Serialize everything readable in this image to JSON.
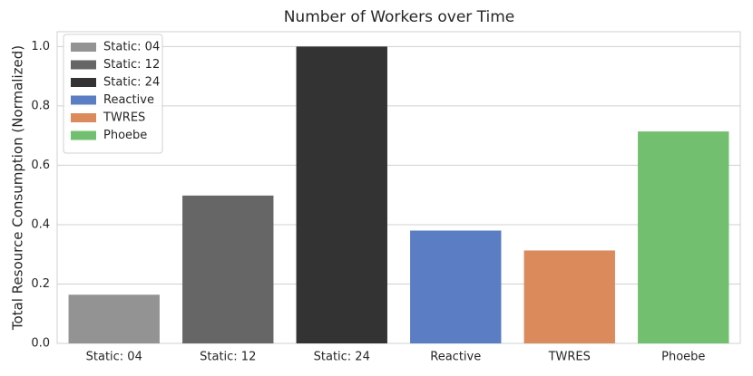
{
  "chart_data": {
    "type": "bar",
    "title": "Number of Workers over Time",
    "y_label": "Total Resource Consumption (Normalized)",
    "categories": [
      "Static: 04",
      "Static: 12",
      "Static: 24",
      "Reactive",
      "TWRES",
      "Phoebe"
    ],
    "values": [
      0.164,
      0.498,
      1.0,
      0.38,
      0.313,
      0.714
    ],
    "colors": [
      "#939393",
      "#666666",
      "#333333",
      "#5a7dc3",
      "#db8a5c",
      "#72c06f"
    ],
    "ylim": [
      0,
      1.05
    ],
    "yticks": [
      {
        "value": 0,
        "label": "0.0"
      },
      0.2,
      0.4,
      0.6,
      0.8,
      {
        "value": 1,
        "label": "1.0"
      }
    ],
    "grid": true,
    "legend": "upper-left"
  }
}
